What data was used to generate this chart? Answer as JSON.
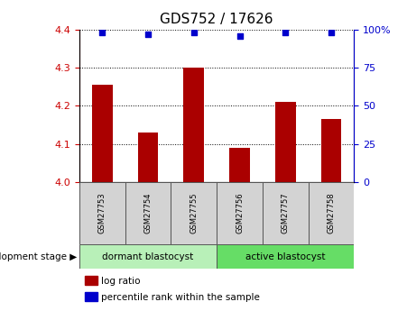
{
  "title": "GDS752 / 17626",
  "samples": [
    "GSM27753",
    "GSM27754",
    "GSM27755",
    "GSM27756",
    "GSM27757",
    "GSM27758"
  ],
  "log_ratios": [
    4.255,
    4.13,
    4.3,
    4.09,
    4.21,
    4.165
  ],
  "percentile_ranks": [
    98,
    97,
    98,
    96,
    98,
    98
  ],
  "ylim_left": [
    4.0,
    4.4
  ],
  "ylim_right": [
    0,
    100
  ],
  "yticks_left": [
    4.0,
    4.1,
    4.2,
    4.3,
    4.4
  ],
  "yticks_right": [
    0,
    25,
    50,
    75,
    100
  ],
  "bar_color": "#aa0000",
  "dot_color": "#0000cc",
  "bar_width": 0.45,
  "groups": [
    {
      "label": "dormant blastocyst",
      "indices": [
        0,
        1,
        2
      ],
      "color": "#b8f0b8"
    },
    {
      "label": "active blastocyst",
      "indices": [
        3,
        4,
        5
      ],
      "color": "#66dd66"
    }
  ],
  "group_label": "development stage",
  "legend_items": [
    {
      "label": "log ratio",
      "color": "#aa0000"
    },
    {
      "label": "percentile rank within the sample",
      "color": "#0000cc"
    }
  ],
  "left_axis_color": "#cc0000",
  "right_axis_color": "#0000cc",
  "title_fontsize": 11,
  "tick_fontsize": 8,
  "sample_box_color": "#d3d3d3"
}
